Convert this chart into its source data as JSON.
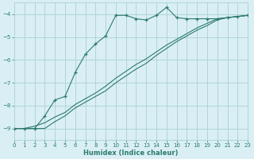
{
  "xlabel": "Humidex (Indice chaleur)",
  "bg_color": "#d9eff4",
  "grid_color": "#b0d4db",
  "line_color": "#2d7a6e",
  "x_min": 0,
  "x_max": 23,
  "y_min": -9.5,
  "y_max": -3.5,
  "yticks": [
    -9,
    -8,
    -7,
    -6,
    -5,
    -4
  ],
  "line1_x": [
    0,
    1,
    2,
    3,
    4,
    5,
    6,
    7,
    8,
    9,
    10,
    11,
    12,
    13,
    14,
    15,
    16,
    17,
    18,
    19,
    20,
    21,
    22,
    23
  ],
  "line1_y": [
    -9.0,
    -9.0,
    -9.0,
    -8.45,
    -7.75,
    -7.6,
    -6.55,
    -5.75,
    -5.3,
    -4.95,
    -4.05,
    -4.05,
    -4.2,
    -4.25,
    -4.05,
    -3.7,
    -4.15,
    -4.2,
    -4.2,
    -4.2,
    -4.2,
    -4.15,
    -4.1,
    -4.05
  ],
  "line2_x": [
    0,
    1,
    2,
    3,
    4,
    5,
    6,
    7,
    8,
    9,
    10,
    11,
    12,
    13,
    14,
    15,
    16,
    17,
    18,
    19,
    20,
    21,
    22,
    23
  ],
  "line2_y": [
    -9.0,
    -9.0,
    -8.9,
    -8.75,
    -8.5,
    -8.3,
    -7.95,
    -7.7,
    -7.45,
    -7.15,
    -6.8,
    -6.5,
    -6.2,
    -5.95,
    -5.65,
    -5.35,
    -5.1,
    -4.85,
    -4.6,
    -4.4,
    -4.2,
    -4.15,
    -4.1,
    -4.05
  ],
  "line3_x": [
    0,
    1,
    2,
    3,
    4,
    5,
    6,
    7,
    8,
    9,
    10,
    11,
    12,
    13,
    14,
    15,
    16,
    17,
    18,
    19,
    20,
    21,
    22,
    23
  ],
  "line3_y": [
    -9.0,
    -9.0,
    -9.0,
    -9.0,
    -8.7,
    -8.45,
    -8.1,
    -7.85,
    -7.6,
    -7.35,
    -7.0,
    -6.7,
    -6.4,
    -6.15,
    -5.8,
    -5.5,
    -5.2,
    -4.95,
    -4.7,
    -4.5,
    -4.25,
    -4.15,
    -4.1,
    -4.05
  ]
}
